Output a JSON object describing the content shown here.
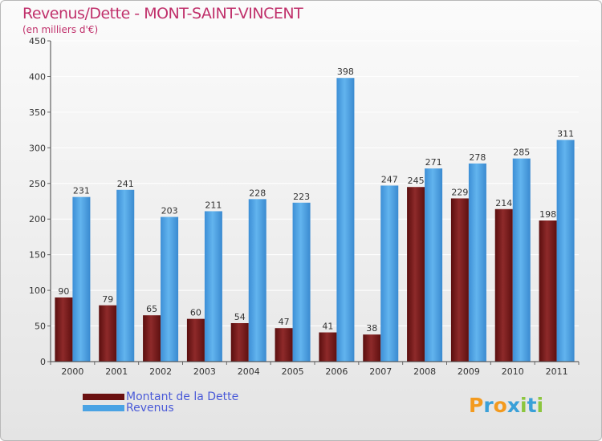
{
  "title": "Revenus/Dette - MONT-SAINT-VINCENT",
  "subtitle": "(en milliers d'€)",
  "colors": {
    "debt": "#7a1717",
    "revenue": "#4aa3e4",
    "title": "#c0306b",
    "legend_text": "#4a5ad8"
  },
  "legend": {
    "debt_label": "Montant de la Dette",
    "revenue_label": "Revenus"
  },
  "logo": {
    "text": "Proxiti",
    "letters": [
      "P",
      "r",
      "o",
      "x",
      "i",
      "t",
      "i"
    ]
  },
  "chart_data": {
    "type": "bar",
    "title": "Revenus/Dette - MONT-SAINT-VINCENT",
    "subtitle": "(en milliers d'€)",
    "xlabel": "",
    "ylabel": "",
    "ylim": [
      0,
      450
    ],
    "yticks": [
      0,
      50,
      100,
      150,
      200,
      250,
      300,
      350,
      400,
      450
    ],
    "grid": true,
    "legend_position": "bottom-left",
    "categories": [
      "2000",
      "2001",
      "2002",
      "2003",
      "2004",
      "2005",
      "2006",
      "2007",
      "2008",
      "2009",
      "2010",
      "2011"
    ],
    "series": [
      {
        "name": "Montant de la Dette",
        "values": [
          90,
          79,
          65,
          60,
          54,
          47,
          41,
          38,
          245,
          229,
          214,
          198
        ]
      },
      {
        "name": "Revenus",
        "values": [
          231,
          241,
          203,
          211,
          228,
          223,
          398,
          247,
          271,
          278,
          285,
          311
        ]
      }
    ]
  }
}
